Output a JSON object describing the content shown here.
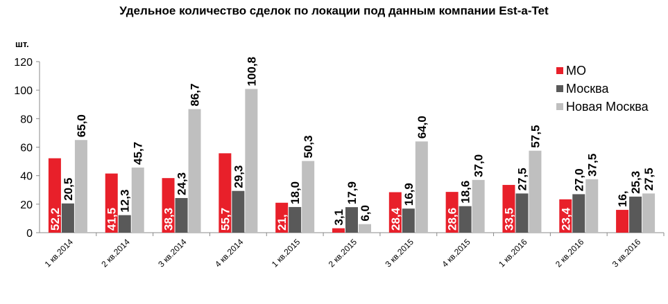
{
  "chart_data": {
    "type": "bar",
    "title": "Удельное количество сделок по локации под данным компании Est-a-Tet",
    "ylabel": "шт.",
    "xlabel": "",
    "ylim": [
      0,
      120
    ],
    "yticks": [
      0,
      20,
      40,
      60,
      80,
      100,
      120
    ],
    "grid": false,
    "legend_position": "top-right",
    "categories": [
      "1 кв.2014",
      "2 кв.2014",
      "3 кв.2014",
      "4 кв.2014",
      "1 кв.2015",
      "2 кв.2015",
      "3 кв.2015",
      "4 кв.2015",
      "1 кв.2016",
      "2 кв.2016",
      "3 кв.2016"
    ],
    "series": [
      {
        "name": "МО",
        "color": "#e8202a",
        "values": [
          52.2,
          41.5,
          38.3,
          55.7,
          21.0,
          3.1,
          28.4,
          28.6,
          33.5,
          23.4,
          16.0
        ],
        "labels": [
          "52,2",
          "41,5",
          "38,3",
          "55,7",
          "21,",
          "3,1",
          "28,4",
          "28,6",
          "33,5",
          "23,4",
          "16,"
        ]
      },
      {
        "name": "Москва",
        "color": "#595959",
        "values": [
          20.5,
          12.3,
          24.3,
          29.3,
          18.0,
          17.9,
          16.9,
          18.6,
          27.5,
          27.0,
          25.3
        ],
        "labels": [
          "20,5",
          "12,3",
          "24,3",
          "29,3",
          "18,0",
          "17,9",
          "16,9",
          "18,6",
          "27,5",
          "27,0",
          "25,3"
        ]
      },
      {
        "name": "Новая Москва",
        "color": "#bfbfbf",
        "values": [
          65.0,
          45.7,
          86.7,
          100.8,
          50.3,
          6.0,
          64.0,
          37.0,
          57.5,
          37.5,
          27.5
        ],
        "labels": [
          "65,0",
          "45,7",
          "86,7",
          "100,8",
          "50,3",
          "6,0",
          "64,0",
          "37,0",
          "57,5",
          "37,5",
          "27,5"
        ]
      }
    ]
  }
}
